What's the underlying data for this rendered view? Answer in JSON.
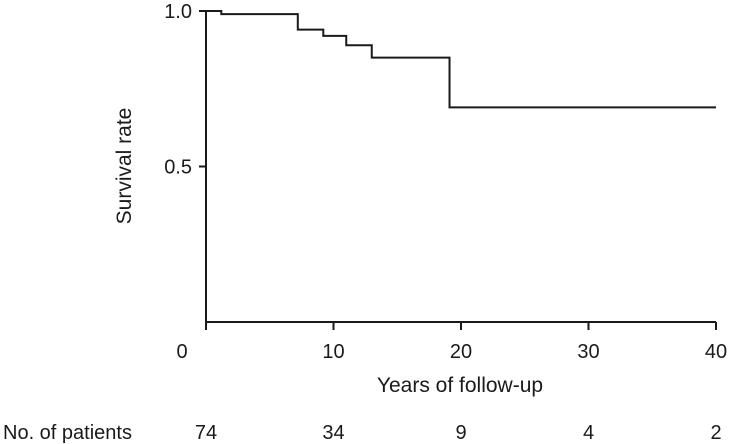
{
  "chart_data": {
    "type": "line",
    "subtype": "kaplan-meier-step",
    "title": "",
    "xlabel": "Years of follow-up",
    "ylabel": "Survival rate",
    "xlim": [
      0,
      40
    ],
    "ylim": [
      0,
      1.0
    ],
    "x_ticks": [
      0,
      10,
      20,
      30,
      40
    ],
    "y_ticks": [
      0.5,
      1.0
    ],
    "x_tick_labels": [
      "0",
      "10",
      "20",
      "30",
      "40"
    ],
    "y_tick_labels": [
      "0.5",
      "1.0"
    ],
    "grid": false,
    "series": [
      {
        "steps": [
          {
            "x": 0,
            "y": 1.0
          },
          {
            "x": 1.2,
            "y": 0.99
          },
          {
            "x": 7.2,
            "y": 0.94
          },
          {
            "x": 9.2,
            "y": 0.92
          },
          {
            "x": 11.0,
            "y": 0.89
          },
          {
            "x": 13.0,
            "y": 0.85
          },
          {
            "x": 19.1,
            "y": 0.69
          },
          {
            "x": 40,
            "y": 0.69
          }
        ]
      }
    ],
    "risk_table": {
      "label": "No. of patients",
      "at_x": [
        0,
        10,
        20,
        30,
        40
      ],
      "values": [
        "74",
        "34",
        "9",
        "4",
        "2"
      ]
    },
    "colors": {
      "line": "#1a1a1a",
      "axis": "#1a1a1a"
    }
  }
}
